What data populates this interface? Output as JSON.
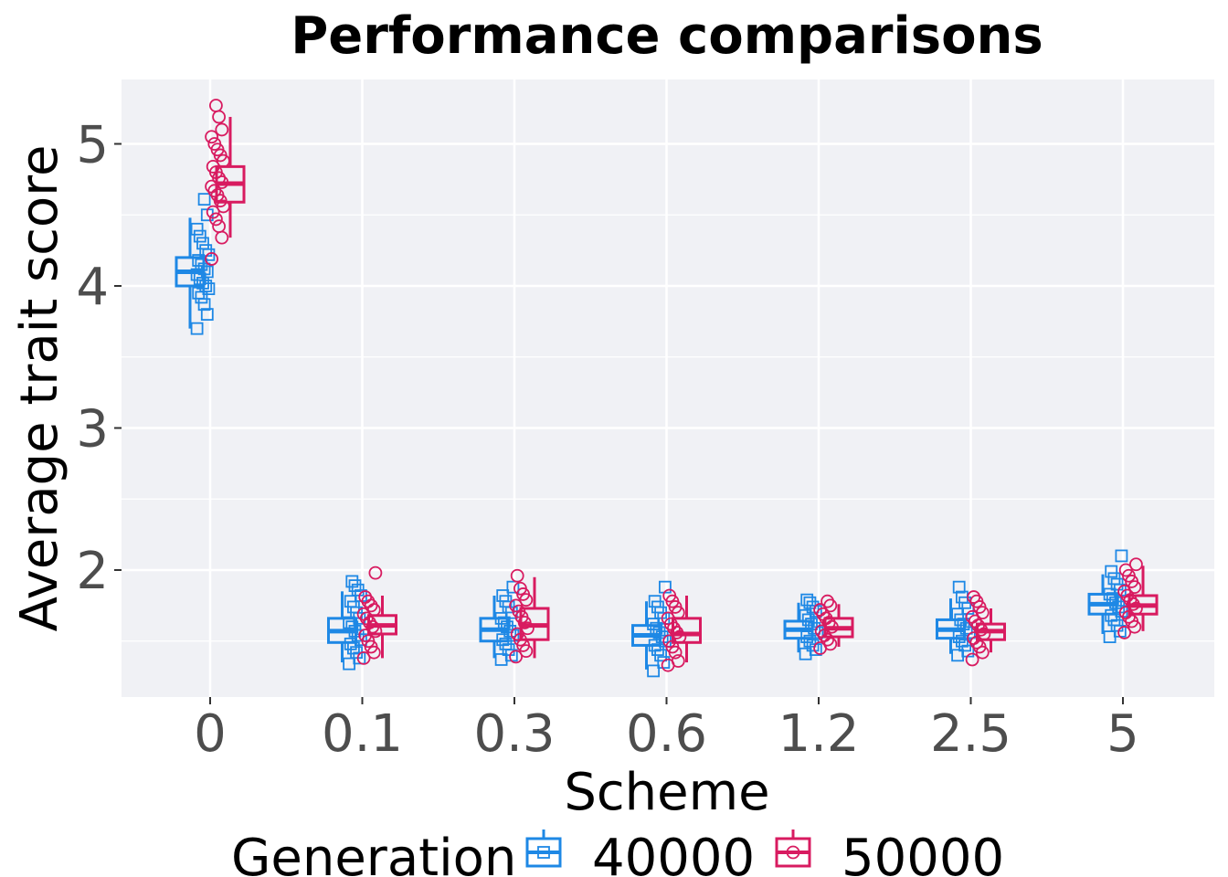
{
  "chart_data": {
    "type": "box",
    "title": "Performance comparisons",
    "xlabel": "Scheme",
    "ylabel": "Average trait score",
    "categories": [
      "0",
      "0.1",
      "0.3",
      "0.6",
      "1.2",
      "2.5",
      "5"
    ],
    "y_ticks": [
      2,
      3,
      4,
      5
    ],
    "y_tick_labels": [
      "2",
      "3",
      "4",
      "5"
    ],
    "ylim": [
      1.12,
      5.45
    ],
    "grid": true,
    "legend": {
      "title": "Generation",
      "position": "bottom",
      "entries": [
        "40000",
        "50000"
      ]
    },
    "series": [
      {
        "name": "40000",
        "color": "#1e88e5",
        "marker": "square",
        "boxes": [
          {
            "category": "0",
            "whisker_low": 3.7,
            "q1": 4.0,
            "median": 4.1,
            "q3": 4.2,
            "whisker_high": 4.48,
            "points": [
              3.7,
              3.8,
              3.87,
              3.92,
              3.95,
              3.98,
              4.0,
              4.02,
              4.05,
              4.08,
              4.1,
              4.12,
              4.15,
              4.18,
              4.22,
              4.25,
              4.3,
              4.35,
              4.4,
              4.5,
              4.61
            ]
          },
          {
            "category": "0.1",
            "whisker_low": 1.35,
            "q1": 1.49,
            "median": 1.57,
            "q3": 1.66,
            "whisker_high": 1.85,
            "points": [
              1.34,
              1.38,
              1.42,
              1.45,
              1.48,
              1.51,
              1.54,
              1.57,
              1.6,
              1.63,
              1.66,
              1.7,
              1.74,
              1.78,
              1.82,
              1.86,
              1.89,
              1.92
            ]
          },
          {
            "category": "0.3",
            "whisker_low": 1.38,
            "q1": 1.5,
            "median": 1.58,
            "q3": 1.66,
            "whisker_high": 1.82,
            "points": [
              1.37,
              1.4,
              1.44,
              1.48,
              1.51,
              1.54,
              1.57,
              1.6,
              1.63,
              1.66,
              1.7,
              1.74,
              1.78,
              1.82,
              1.88
            ]
          },
          {
            "category": "0.6",
            "whisker_low": 1.3,
            "q1": 1.47,
            "median": 1.54,
            "q3": 1.61,
            "whisker_high": 1.78,
            "points": [
              1.29,
              1.35,
              1.4,
              1.44,
              1.47,
              1.5,
              1.53,
              1.56,
              1.59,
              1.62,
              1.66,
              1.7,
              1.74,
              1.78,
              1.88
            ]
          },
          {
            "category": "1.2",
            "whisker_low": 1.42,
            "q1": 1.52,
            "median": 1.58,
            "q3": 1.64,
            "whisker_high": 1.77,
            "points": [
              1.41,
              1.44,
              1.47,
              1.5,
              1.53,
              1.56,
              1.59,
              1.62,
              1.65,
              1.68,
              1.71,
              1.74,
              1.77,
              1.79
            ]
          },
          {
            "category": "2.5",
            "whisker_low": 1.41,
            "q1": 1.52,
            "median": 1.58,
            "q3": 1.65,
            "whisker_high": 1.8,
            "points": [
              1.4,
              1.43,
              1.47,
              1.5,
              1.53,
              1.56,
              1.59,
              1.62,
              1.65,
              1.69,
              1.73,
              1.77,
              1.81,
              1.88
            ]
          },
          {
            "category": "5",
            "whisker_low": 1.55,
            "q1": 1.69,
            "median": 1.76,
            "q3": 1.83,
            "whisker_high": 1.97,
            "points": [
              1.53,
              1.57,
              1.61,
              1.65,
              1.68,
              1.71,
              1.74,
              1.77,
              1.8,
              1.83,
              1.86,
              1.9,
              1.94,
              1.99,
              2.1
            ]
          }
        ]
      },
      {
        "name": "50000",
        "color": "#d81b60",
        "marker": "circle",
        "boxes": [
          {
            "category": "0",
            "whisker_low": 4.34,
            "q1": 4.59,
            "median": 4.72,
            "q3": 4.84,
            "whisker_high": 5.19,
            "points": [
              4.19,
              4.34,
              4.42,
              4.47,
              4.52,
              4.56,
              4.6,
              4.64,
              4.67,
              4.7,
              4.73,
              4.76,
              4.8,
              4.84,
              4.88,
              4.92,
              4.96,
              5.0,
              5.05,
              5.1,
              5.19,
              5.27
            ]
          },
          {
            "category": "0.1",
            "whisker_low": 1.38,
            "q1": 1.55,
            "median": 1.61,
            "q3": 1.68,
            "whisker_high": 1.82,
            "points": [
              1.38,
              1.42,
              1.46,
              1.5,
              1.54,
              1.57,
              1.6,
              1.63,
              1.66,
              1.69,
              1.72,
              1.75,
              1.78,
              1.81,
              1.98
            ]
          },
          {
            "category": "0.3",
            "whisker_low": 1.38,
            "q1": 1.51,
            "median": 1.61,
            "q3": 1.73,
            "whisker_high": 1.95,
            "points": [
              1.39,
              1.43,
              1.47,
              1.51,
              1.55,
              1.59,
              1.63,
              1.67,
              1.71,
              1.75,
              1.79,
              1.83,
              1.87,
              1.96
            ]
          },
          {
            "category": "0.6",
            "whisker_low": 1.35,
            "q1": 1.49,
            "median": 1.55,
            "q3": 1.66,
            "whisker_high": 1.82,
            "points": [
              1.33,
              1.36,
              1.42,
              1.46,
              1.5,
              1.53,
              1.56,
              1.59,
              1.62,
              1.66,
              1.7,
              1.74,
              1.78,
              1.82
            ]
          },
          {
            "category": "1.2",
            "whisker_low": 1.46,
            "q1": 1.53,
            "median": 1.59,
            "q3": 1.66,
            "whisker_high": 1.76,
            "points": [
              1.45,
              1.48,
              1.51,
              1.54,
              1.57,
              1.6,
              1.63,
              1.66,
              1.69,
              1.72,
              1.75,
              1.78
            ]
          },
          {
            "category": "2.5",
            "whisker_low": 1.42,
            "q1": 1.51,
            "median": 1.57,
            "q3": 1.62,
            "whisker_high": 1.73,
            "points": [
              1.37,
              1.42,
              1.46,
              1.49,
              1.52,
              1.55,
              1.58,
              1.61,
              1.64,
              1.67,
              1.7,
              1.74,
              1.78,
              1.81
            ]
          },
          {
            "category": "5",
            "whisker_low": 1.57,
            "q1": 1.69,
            "median": 1.75,
            "q3": 1.82,
            "whisker_high": 2.03,
            "points": [
              1.56,
              1.6,
              1.64,
              1.67,
              1.7,
              1.73,
              1.76,
              1.79,
              1.82,
              1.85,
              1.88,
              1.92,
              1.96,
              2.0,
              2.04
            ]
          }
        ]
      }
    ]
  }
}
